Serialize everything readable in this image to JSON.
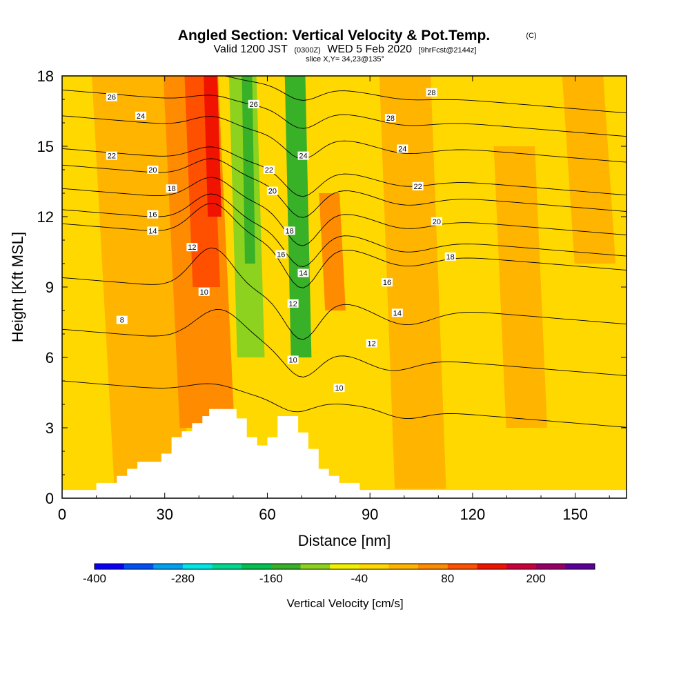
{
  "header": {
    "title": "Angled Section: Vertical Velocity & Pot.Temp.",
    "title_mark": "(C)",
    "valid_prefix": "Valid 1200 JST",
    "valid_utc": "(0300Z)",
    "valid_date": "WED 5 Feb 2020",
    "forecast": "[9hrFcst@2144z]",
    "slice": "slice X,Y= 34,23@135°"
  },
  "chart_data": {
    "type": "heatmap",
    "xlabel": "Distance [nm]",
    "ylabel": "Height [Kft MSL]",
    "xlim": [
      0,
      165
    ],
    "ylim": [
      0,
      18
    ],
    "x_ticks": [
      0,
      30,
      60,
      90,
      120,
      150
    ],
    "y_ticks": [
      0,
      3,
      6,
      9,
      12,
      15,
      18
    ],
    "colorbar": {
      "label": "Vertical Velocity [cm/s]",
      "range": [
        -400,
        280
      ],
      "tick_values": [
        -400,
        -280,
        -160,
        -40,
        80,
        200
      ],
      "tick_labels": [
        "-400",
        "-280",
        "-160",
        "-40",
        "80",
        "200"
      ],
      "colors": [
        "#0a00f5",
        "#0050f5",
        "#00a0f0",
        "#00e5e5",
        "#00d890",
        "#00c050",
        "#38b028",
        "#8cd21e",
        "#f0f000",
        "#ffd800",
        "#ffb400",
        "#ff8c00",
        "#ff5000",
        "#f01400",
        "#c8003c",
        "#960064",
        "#5a0096"
      ]
    },
    "background_color": "#ffd800",
    "velocity_bands": [
      {
        "x": [
          12,
          34
        ],
        "y": [
          0.4,
          18
        ],
        "value": 20
      },
      {
        "x": [
          32,
          48
        ],
        "y": [
          3,
          18
        ],
        "value": 60
      },
      {
        "x": [
          37,
          45
        ],
        "y": [
          9,
          18
        ],
        "value": 90
      },
      {
        "x": [
          42,
          46
        ],
        "y": [
          12,
          18
        ],
        "value": 150
      },
      {
        "x": [
          50,
          58
        ],
        "y": [
          6,
          18
        ],
        "value": -120
      },
      {
        "x": [
          53,
          56
        ],
        "y": [
          10,
          18
        ],
        "value": -150
      },
      {
        "x": [
          60,
          66
        ],
        "y": [
          4,
          18
        ],
        "value": -40
      },
      {
        "x": [
          66,
          72
        ],
        "y": [
          6,
          18
        ],
        "value": -160
      },
      {
        "x": [
          76,
          82
        ],
        "y": [
          8,
          13
        ],
        "value": 40
      },
      {
        "x": [
          95,
          110
        ],
        "y": [
          0.4,
          18
        ],
        "value": 20
      },
      {
        "x": [
          128,
          140
        ],
        "y": [
          3,
          15
        ],
        "value": 20
      },
      {
        "x": [
          148,
          160
        ],
        "y": [
          10,
          18
        ],
        "value": 20
      }
    ],
    "terrain": [
      [
        0,
        0.35
      ],
      [
        10,
        0.35
      ],
      [
        10,
        0.65
      ],
      [
        16,
        0.65
      ],
      [
        16,
        0.95
      ],
      [
        19,
        0.95
      ],
      [
        19,
        1.25
      ],
      [
        22,
        1.25
      ],
      [
        22,
        1.55
      ],
      [
        29,
        1.55
      ],
      [
        29,
        1.9
      ],
      [
        32,
        1.9
      ],
      [
        32,
        2.6
      ],
      [
        35,
        2.6
      ],
      [
        35,
        2.85
      ],
      [
        38,
        2.85
      ],
      [
        38,
        3.2
      ],
      [
        41,
        3.2
      ],
      [
        41,
        3.5
      ],
      [
        43,
        3.5
      ],
      [
        43,
        3.8
      ],
      [
        51,
        3.8
      ],
      [
        51,
        3.4
      ],
      [
        54,
        3.4
      ],
      [
        54,
        2.6
      ],
      [
        57,
        2.6
      ],
      [
        57,
        2.25
      ],
      [
        60,
        2.25
      ],
      [
        60,
        2.6
      ],
      [
        63,
        2.6
      ],
      [
        63,
        3.5
      ],
      [
        69,
        3.5
      ],
      [
        69,
        2.8
      ],
      [
        72,
        2.8
      ],
      [
        72,
        2.1
      ],
      [
        75,
        2.1
      ],
      [
        75,
        1.25
      ],
      [
        78,
        1.25
      ],
      [
        78,
        0.95
      ],
      [
        81,
        0.95
      ],
      [
        81,
        0.65
      ],
      [
        87,
        0.65
      ],
      [
        87,
        0.35
      ],
      [
        165,
        0.35
      ]
    ],
    "isentropes": [
      {
        "theta": 8,
        "y0": 5.0,
        "bumps": [
          [
            44,
            0.4,
            7
          ],
          [
            68,
            -0.5,
            5
          ],
          [
            100,
            -0.4,
            6
          ]
        ],
        "label_x": 23
      },
      {
        "theta": 10,
        "y0": 7.2,
        "bumps": [
          [
            46,
            1.4,
            7
          ],
          [
            70,
            -1.2,
            5
          ],
          [
            96,
            -0.6,
            7
          ]
        ],
        "label_x": 47
      },
      {
        "theta": 12,
        "y0": 9.4,
        "bumps": [
          [
            44,
            1.8,
            6
          ],
          [
            70,
            -1.8,
            5
          ],
          [
            100,
            -0.8,
            8
          ]
        ],
        "label_x": 42
      },
      {
        "theta": 14,
        "y0": 11.7,
        "bumps": [
          [
            44,
            1.4,
            6
          ],
          [
            70,
            -1.9,
            5
          ],
          [
            100,
            -0.6,
            8
          ]
        ],
        "label_x": 30
      },
      {
        "theta": 16,
        "y0": 12.3,
        "bumps": [
          [
            44,
            1.2,
            6
          ],
          [
            70,
            -1.6,
            5
          ],
          [
            100,
            -0.6,
            8
          ]
        ],
        "label_x": 30
      },
      {
        "theta": 18,
        "y0": 13.2,
        "bumps": [
          [
            44,
            1.0,
            6
          ],
          [
            70,
            -1.6,
            5
          ],
          [
            100,
            -0.5,
            8
          ]
        ],
        "label_x": 32
      },
      {
        "theta": 20,
        "y0": 14.2,
        "bumps": [
          [
            44,
            0.8,
            6
          ],
          [
            70,
            -1.4,
            5
          ],
          [
            100,
            -0.5,
            8
          ]
        ],
        "label_x": 26
      },
      {
        "theta": 22,
        "y0": 14.9,
        "bumps": [
          [
            44,
            0.6,
            6
          ],
          [
            70,
            -1.2,
            5
          ],
          [
            100,
            -0.4,
            8
          ]
        ],
        "label_x": 14
      },
      {
        "theta": 24,
        "y0": 16.3,
        "bumps": [
          [
            44,
            0.5,
            6
          ],
          [
            70,
            -1.0,
            5
          ],
          [
            100,
            -0.4,
            8
          ]
        ],
        "label_x": 23
      },
      {
        "theta": 26,
        "y0": 17.4,
        "bumps": [
          [
            44,
            0.3,
            6
          ],
          [
            70,
            -0.8,
            5
          ],
          [
            100,
            -0.3,
            8
          ]
        ],
        "label_x": 14
      },
      {
        "theta": 28,
        "y0": 18.4,
        "bumps": [
          [
            44,
            0.2,
            6
          ],
          [
            70,
            -0.6,
            5
          ],
          [
            100,
            -0.2,
            8
          ]
        ],
        "label_x": 110
      }
    ],
    "contour_labels": [
      {
        "text": "26",
        "x": 14.5,
        "y": 17.1
      },
      {
        "text": "26",
        "x": 56,
        "y": 16.8
      },
      {
        "text": "28",
        "x": 108,
        "y": 17.3
      },
      {
        "text": "28",
        "x": 96,
        "y": 16.2
      },
      {
        "text": "24",
        "x": 23,
        "y": 16.3
      },
      {
        "text": "24",
        "x": 70.5,
        "y": 14.6
      },
      {
        "text": "24",
        "x": 99.5,
        "y": 14.9
      },
      {
        "text": "22",
        "x": 14.5,
        "y": 14.6
      },
      {
        "text": "22",
        "x": 60.5,
        "y": 14.0
      },
      {
        "text": "22",
        "x": 104,
        "y": 13.3
      },
      {
        "text": "20",
        "x": 26.5,
        "y": 14.0
      },
      {
        "text": "20",
        "x": 61.5,
        "y": 13.1
      },
      {
        "text": "20",
        "x": 109.5,
        "y": 11.8
      },
      {
        "text": "18",
        "x": 32,
        "y": 13.2
      },
      {
        "text": "18",
        "x": 66.5,
        "y": 11.4
      },
      {
        "text": "18",
        "x": 113.5,
        "y": 10.3
      },
      {
        "text": "16",
        "x": 26.5,
        "y": 12.1
      },
      {
        "text": "16",
        "x": 64,
        "y": 10.4
      },
      {
        "text": "16",
        "x": 95,
        "y": 9.2
      },
      {
        "text": "14",
        "x": 26.5,
        "y": 11.4
      },
      {
        "text": "14",
        "x": 70.5,
        "y": 9.6
      },
      {
        "text": "14",
        "x": 98,
        "y": 7.9
      },
      {
        "text": "12",
        "x": 38,
        "y": 10.7
      },
      {
        "text": "12",
        "x": 67.5,
        "y": 8.3
      },
      {
        "text": "12",
        "x": 90.5,
        "y": 6.6
      },
      {
        "text": "10",
        "x": 41.5,
        "y": 8.8
      },
      {
        "text": "10",
        "x": 67.5,
        "y": 5.9
      },
      {
        "text": "10",
        "x": 81,
        "y": 4.7
      },
      {
        "text": "8",
        "x": 17.5,
        "y": 7.6
      }
    ]
  }
}
